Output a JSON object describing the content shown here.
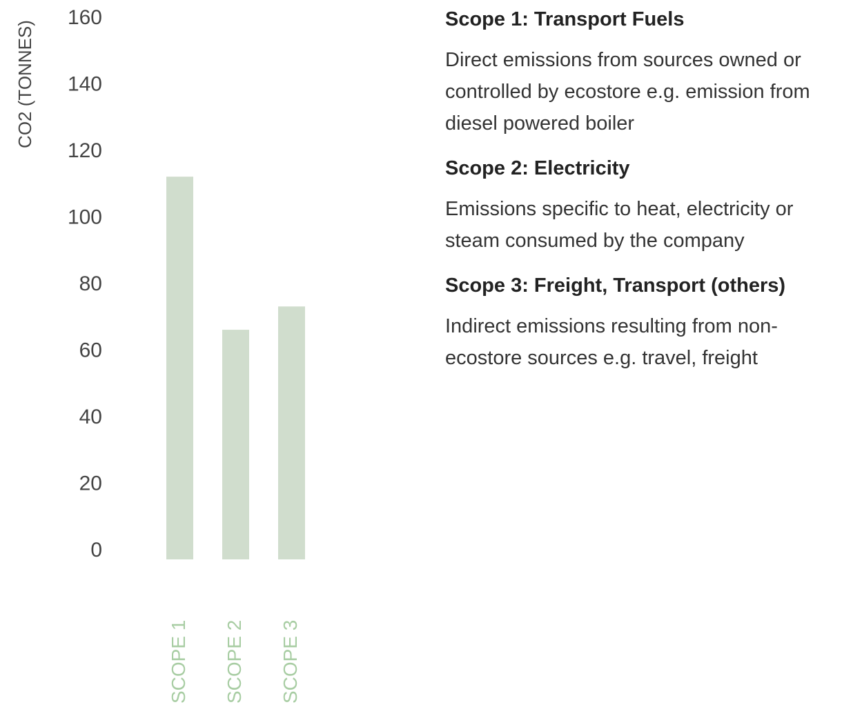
{
  "chart_data": {
    "type": "bar",
    "y_label": "CO2 (TONNES)",
    "categories": [
      "SCOPE 1",
      "SCOPE 2",
      "SCOPE 3"
    ],
    "values": [
      115,
      69,
      76
    ],
    "color": "#d0ddcd",
    "category_color": "#a8cda3",
    "ylim": [
      0,
      160
    ],
    "yticks": [
      0,
      20,
      40,
      60,
      80,
      100,
      120,
      140,
      160
    ],
    "grid": false
  },
  "notes": [
    {
      "title": "Scope 1: Transport Fuels",
      "text": "Direct emissions from sources owned or controlled by ecostore e.g. emission from diesel powered boiler"
    },
    {
      "title": "Scope 2: Electricity",
      "text": "Emissions specific to heat, electricity or steam consumed by the company"
    },
    {
      "title": "Scope 3: Freight, Transport (others)",
      "text": "Indirect emissions resulting from non-ecostore sources e.g. travel, freight"
    }
  ]
}
